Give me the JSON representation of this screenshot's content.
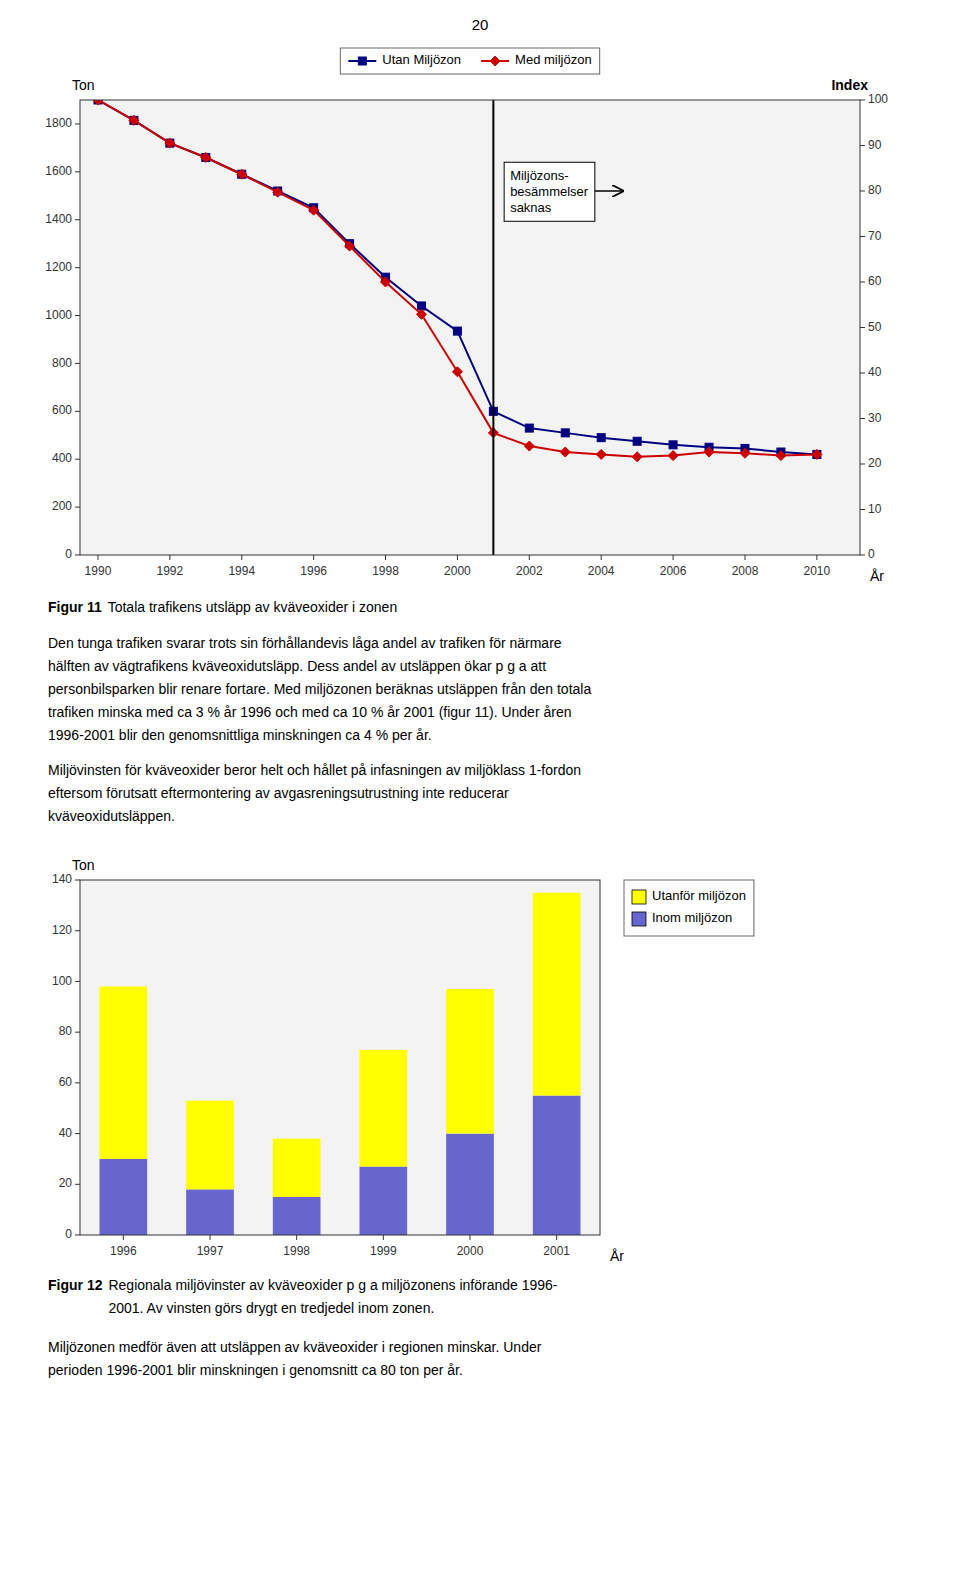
{
  "page_number": "20",
  "chart_data": [
    {
      "type": "line",
      "caption_label": "Figur 11",
      "caption": [
        "Totala trafikens utsläpp av kväveoxider i zonen"
      ],
      "x": [
        1990,
        1991,
        1992,
        1993,
        1994,
        1995,
        1996,
        1997,
        1998,
        1999,
        2000,
        2001,
        2002,
        2003,
        2004,
        2005,
        2006,
        2007,
        2008,
        2009,
        2010
      ],
      "xlim": [
        1989.5,
        2011.2
      ],
      "xticks": [
        1990,
        1992,
        1994,
        1996,
        1998,
        2000,
        2002,
        2004,
        2006,
        2008,
        2010
      ],
      "ylim": [
        0,
        1900
      ],
      "yticks": [
        0,
        200,
        400,
        600,
        800,
        1000,
        1200,
        1400,
        1600,
        1800
      ],
      "y2lim": [
        0,
        100
      ],
      "y2ticks": [
        0,
        10,
        20,
        30,
        40,
        50,
        60,
        70,
        80,
        90,
        100
      ],
      "xlabel": "År",
      "ylabel": "Ton",
      "y2label": "Index",
      "legend": "top",
      "grid": false,
      "series": [
        {
          "name": "Utan Miljözon",
          "color": "#000080",
          "marker": "square",
          "values": [
            1900,
            1815,
            1720,
            1660,
            1590,
            1520,
            1450,
            1300,
            1160,
            1040,
            935,
            600,
            530,
            510,
            490,
            475,
            460,
            450,
            445,
            430,
            420
          ]
        },
        {
          "name": "Med miljözon",
          "color": "#CC0000",
          "marker": "diamond",
          "values": [
            1900,
            1815,
            1720,
            1660,
            1590,
            1515,
            1440,
            1290,
            1140,
            1005,
            765,
            510,
            455,
            430,
            420,
            410,
            415,
            430,
            425,
            415,
            420
          ]
        }
      ],
      "vlines": [
        2001
      ],
      "annotations": [
        {
          "text": "Miljözons-\nbesämmelser\nsaknas",
          "x": 2001.3,
          "y": 1640,
          "arrow_x": 2003.5,
          "arrow_y": 1520
        }
      ]
    },
    {
      "type": "bar",
      "stacked": true,
      "caption_label": "Figur 12",
      "caption": [
        "Regionala miljövinster av kväveoxider p g a miljözonens införande 1996-",
        "2001. Av vinsten görs drygt en tredjedel inom zonen."
      ],
      "categories": [
        "1996",
        "1997",
        "1998",
        "1999",
        "2000",
        "2001"
      ],
      "ylim": [
        0,
        140
      ],
      "yticks": [
        0,
        20,
        40,
        60,
        80,
        100,
        120,
        140
      ],
      "xlabel": "År",
      "ylabel": "Ton",
      "legend": "right",
      "grid": false,
      "series": [
        {
          "name": "Inom miljözon",
          "color": "#6666CC",
          "values": [
            30,
            18,
            15,
            27,
            40,
            55
          ]
        },
        {
          "name": "Utanför miljözon",
          "color": "#FFFF00",
          "values": [
            68,
            35,
            23,
            46,
            57,
            80
          ]
        }
      ]
    }
  ],
  "paragraphs": [
    [
      "Den tunga trafiken svarar trots sin förhållandevis låga andel av trafiken för närmare",
      "hälften av vägtrafikens kväveoxidutsläpp. Dess andel av utsläppen ökar p g a att",
      "personbilsparken blir renare fortare. Med miljözonen beräknas utsläppen från den totala",
      "trafiken minska med ca 3 % år 1996 och med ca 10 % år 2001 (figur 11). Under åren",
      "1996-2001 blir den genomsnittliga minskningen ca 4 % per år."
    ],
    [
      "Miljövinsten för kväveoxider beror helt och hållet på infasningen av miljöklass 1-fordon",
      "eftersom förutsatt eftermontering av avgasreningsutrustning inte reducerar",
      "kväveoxidutsläppen."
    ],
    [
      "Miljözonen medför även att utsläppen av kväveoxider i regionen minskar. Under",
      "perioden 1996-2001 blir minskningen i genomsnitt ca 80 ton per år."
    ]
  ]
}
